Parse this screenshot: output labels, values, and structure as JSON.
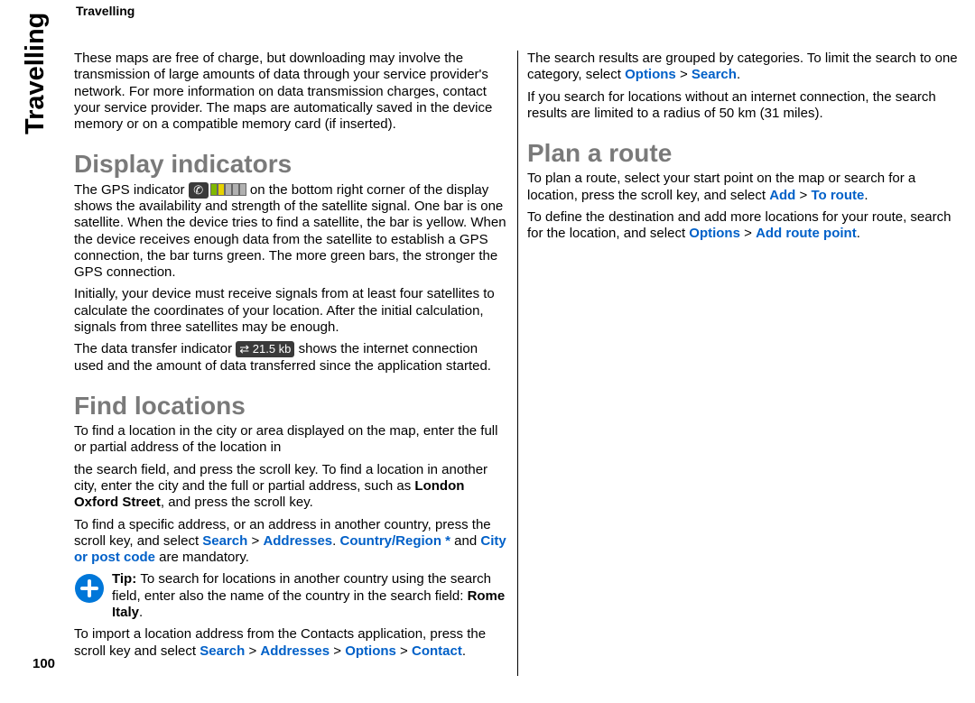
{
  "header": "Travelling",
  "side_tab": "Travelling",
  "page_number": "100",
  "intro": "These maps are free of charge, but downloading may involve the transmission of large amounts of data through your service provider's network. For more information on data transmission charges, contact your service provider. The maps are automatically saved in the device memory or on a compatible memory card (if inserted).",
  "h_display": "Display indicators",
  "disp_p1_a": "The GPS indicator ",
  "disp_p1_b": " on the bottom right corner of the display shows the availability and strength of the satellite signal. One bar is one satellite. When the device tries to find a satellite, the bar is yellow. When the device receives enough data from the satellite to establish a GPS connection, the bar turns green. The more green bars, the stronger the GPS connection.",
  "disp_p2": "Initially, your device must receive signals from at least four satellites to calculate the coordinates of your location. After the initial calculation, signals from three satellites may be enough.",
  "disp_p3_a": "The data transfer indicator ",
  "disp_p3_b": " shows the internet connection used and the amount of data transferred since the application started.",
  "h_find": "Find locations",
  "find_p1": "To find a location in the city or area displayed on the map, enter the full or partial address of the location in",
  "find_p2_a": "the search field, and press the scroll key. To find a location in another city, enter the city and the full or partial address, such as ",
  "find_p2_bold": "London Oxford Street",
  "find_p2_b": ", and press the scroll key.",
  "find_p3_a": "To find a specific address, or an address in another country, press the scroll key, and select ",
  "find_p3_l1": "Search",
  "find_p3_gt1": "  >  ",
  "find_p3_l2": "Addresses",
  "find_p3_dot": ". ",
  "find_p3_l3": "Country/Region *",
  "find_p3_and": " and ",
  "find_p3_l4": "City or post code",
  "find_p3_b": " are mandatory.",
  "tip_label": "Tip: ",
  "tip_text_a": "To search for locations in another country using the search field, enter also the name of the country in the search field: ",
  "tip_bold": "Rome Italy",
  "tip_text_b": ".",
  "imp_a": "To import a location address from the Contacts application, press the scroll key and select ",
  "imp_l1": "Search",
  "imp_gt1": "  >  ",
  "imp_l2": "Addresses",
  "imp_gt2": "  >  ",
  "imp_l3": "Options",
  "imp_gt3": "  >  ",
  "imp_l4": "Contact",
  "imp_dot": ".",
  "cat_a": "The search results are grouped by categories. To limit the search to one category, select ",
  "cat_l1": "Options",
  "cat_gt": "  >  ",
  "cat_l2": "Search",
  "cat_dot": ".",
  "noconn": "If you search for locations without an internet connection, the search results are limited to a radius of 50 km (31 miles).",
  "h_plan": "Plan a route",
  "plan_p1_a": "To plan a route, select your start point on the map or search for a location, press the scroll key, and select ",
  "plan_p1_l1": "Add",
  "plan_p1_gt": "  >  ",
  "plan_p1_l2": "To route",
  "plan_p1_dot": ".",
  "plan_p2_a": "To define the destination and add more locations for your route, search for the location, and select ",
  "plan_p2_l1": "Options",
  "plan_p2_gt": "  >  ",
  "plan_p2_l2": "Add route point",
  "plan_p2_dot": ".",
  "gps_ind": {
    "bar_colors": [
      "#7fb800",
      "#e6d200",
      "#b0b0b0",
      "#b0b0b0",
      "#b0b0b0"
    ],
    "bg": "#3a3a3a",
    "symbol": "✆"
  },
  "data_ind": {
    "bg": "#3a3a3a",
    "fg": "#ffffff",
    "text": "⇄ 21.5 kb"
  },
  "tip_icon": {
    "bg": "#0077d9",
    "fg": "#ffffff"
  }
}
